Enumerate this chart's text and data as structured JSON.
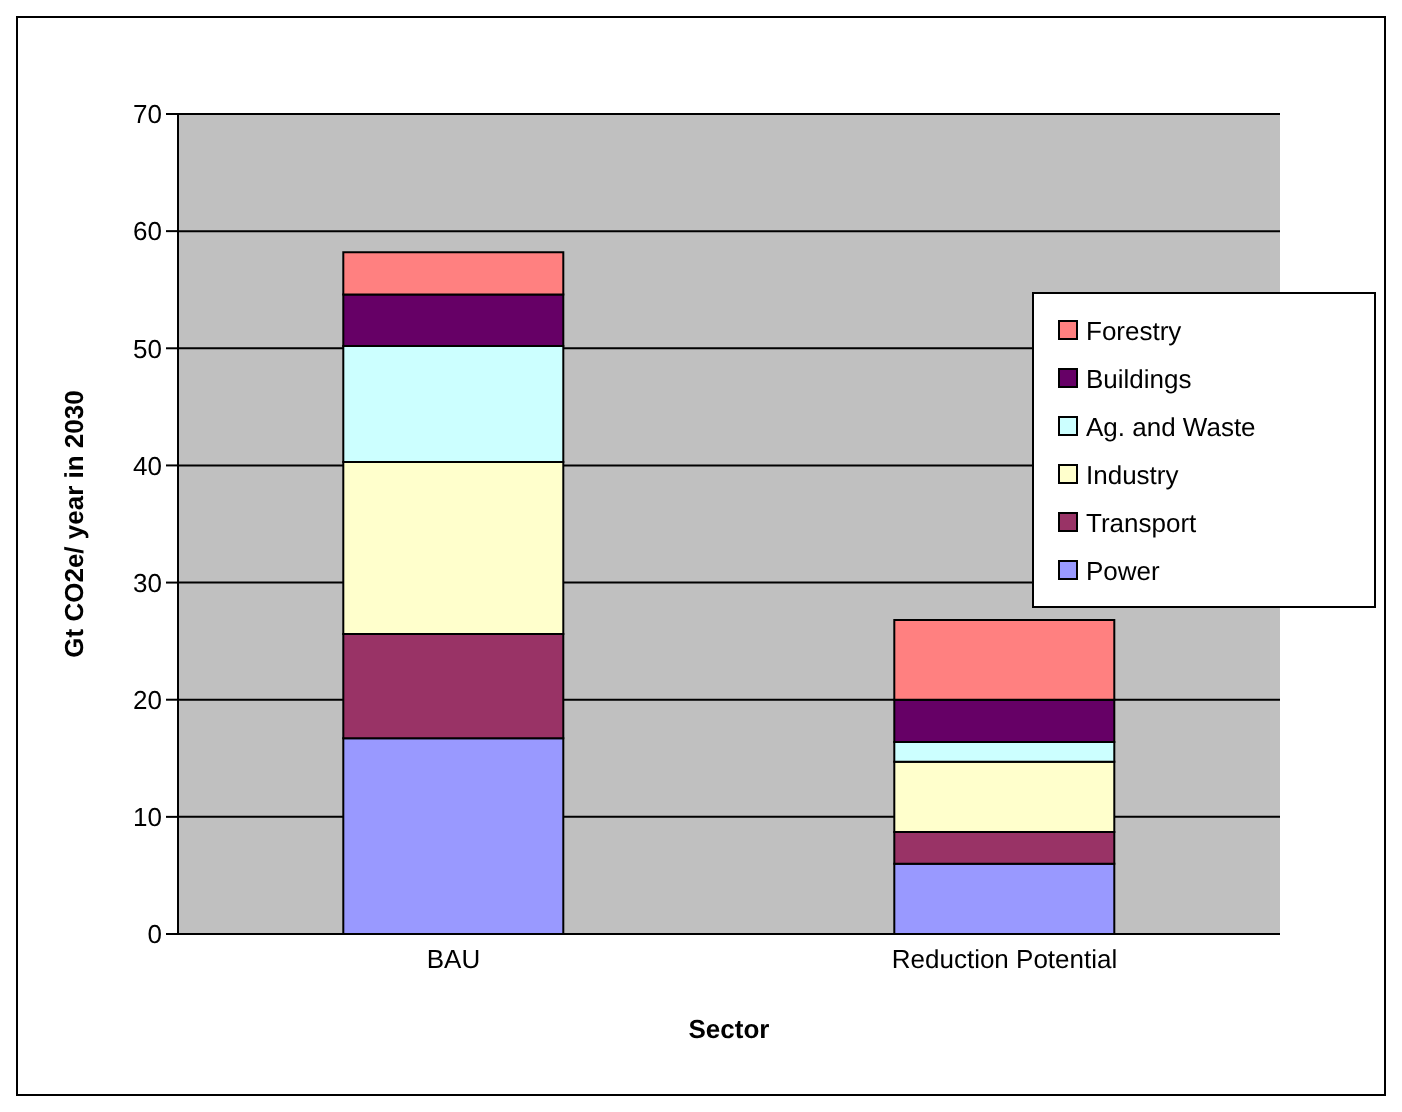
{
  "chart_data": {
    "type": "bar",
    "stacked": true,
    "xlabel": "Sector",
    "ylabel": "Gt CO2e/ year in 2030",
    "categories": [
      "BAU",
      "Reduction Potential"
    ],
    "series": [
      {
        "name": "Power",
        "color": "#9999ff",
        "values": [
          16.7,
          6.0
        ]
      },
      {
        "name": "Transport",
        "color": "#993366",
        "values": [
          8.9,
          2.7
        ]
      },
      {
        "name": "Industry",
        "color": "#ffffcc",
        "values": [
          14.7,
          6.0
        ]
      },
      {
        "name": "Ag. and Waste",
        "color": "#ccffff",
        "values": [
          9.9,
          1.7
        ]
      },
      {
        "name": "Buildings",
        "color": "#660066",
        "values": [
          4.4,
          3.6
        ]
      },
      {
        "name": "Forestry",
        "color": "#ff8080",
        "values": [
          3.6,
          6.8
        ]
      }
    ],
    "ylim": [
      0,
      70
    ],
    "yticks": [
      0,
      10,
      20,
      30,
      40,
      50,
      60,
      70
    ],
    "grid": "y",
    "legend": "right"
  }
}
